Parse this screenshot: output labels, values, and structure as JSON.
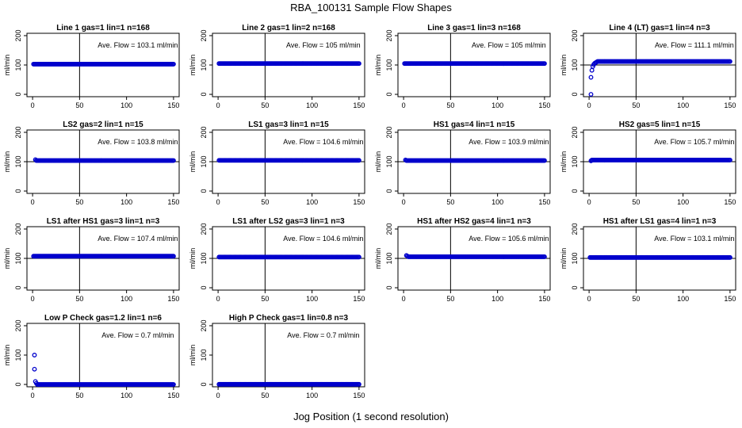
{
  "title": "RBA_100131  Sample Flow Shapes",
  "xlabel": "Jog Position (1 second resolution)",
  "colors": {
    "points": "#0000cc",
    "axes": "#000000",
    "background": "#ffffff"
  },
  "chart_data": [
    {
      "type": "scatter",
      "title": "Line 1 gas=1 lin=1 n=168",
      "ylabel": "ml/min",
      "annotation": "Ave. Flow =  103.1  ml/min",
      "xlim": [
        0,
        150
      ],
      "ylim": [
        0,
        200
      ],
      "xticks": [
        0,
        50,
        100,
        150
      ],
      "yticks": [
        0,
        100,
        200
      ],
      "vline": 50,
      "hline": null,
      "lead": [],
      "flat": {
        "from": 1,
        "to": 150,
        "y": 103
      }
    },
    {
      "type": "scatter",
      "title": "Line 2 gas=1 lin=2 n=168",
      "ylabel": "ml/min",
      "annotation": "Ave. Flow =  105  ml/min",
      "xlim": [
        0,
        150
      ],
      "ylim": [
        0,
        200
      ],
      "xticks": [
        0,
        50,
        100,
        150
      ],
      "yticks": [
        0,
        100,
        200
      ],
      "vline": 50,
      "hline": null,
      "lead": [],
      "flat": {
        "from": 1,
        "to": 150,
        "y": 105
      }
    },
    {
      "type": "scatter",
      "title": "Line 3 gas=1 lin=3 n=168",
      "ylabel": "ml/min",
      "annotation": "Ave. Flow =  105  ml/min",
      "xlim": [
        0,
        150
      ],
      "ylim": [
        0,
        200
      ],
      "xticks": [
        0,
        50,
        100,
        150
      ],
      "yticks": [
        0,
        100,
        200
      ],
      "vline": 50,
      "hline": null,
      "lead": [],
      "flat": {
        "from": 1,
        "to": 150,
        "y": 105
      }
    },
    {
      "type": "scatter",
      "title": "Line 4 (LT) gas=1 lin=4 n=3",
      "ylabel": "ml/min",
      "annotation": "Ave. Flow =  111.1  ml/min",
      "xlim": [
        0,
        150
      ],
      "ylim": [
        0,
        200
      ],
      "xticks": [
        0,
        50,
        100,
        150
      ],
      "yticks": [
        0,
        100,
        200
      ],
      "vline": 50,
      "hline": 100,
      "lead": [
        [
          2,
          0
        ],
        [
          2,
          58
        ],
        [
          3,
          82
        ],
        [
          4,
          95
        ],
        [
          5,
          102
        ],
        [
          6,
          106
        ],
        [
          7,
          108
        ],
        [
          8,
          110
        ]
      ],
      "flat": {
        "from": 9,
        "to": 150,
        "y": 112
      }
    },
    {
      "type": "scatter",
      "title": "LS2 gas=2 lin=1 n=15",
      "ylabel": "ml/min",
      "annotation": "Ave. Flow =  103.8  ml/min",
      "xlim": [
        0,
        150
      ],
      "ylim": [
        0,
        200
      ],
      "xticks": [
        0,
        50,
        100,
        150
      ],
      "yticks": [
        0,
        100,
        200
      ],
      "vline": 50,
      "hline": 100,
      "lead": [
        [
          3,
          107
        ]
      ],
      "flat": {
        "from": 4,
        "to": 150,
        "y": 104
      }
    },
    {
      "type": "scatter",
      "title": "LS1 gas=3 lin=1 n=15",
      "ylabel": "ml/min",
      "annotation": "Ave. Flow =  104.6  ml/min",
      "xlim": [
        0,
        150
      ],
      "ylim": [
        0,
        200
      ],
      "xticks": [
        0,
        50,
        100,
        150
      ],
      "yticks": [
        0,
        100,
        200
      ],
      "vline": 50,
      "hline": 100,
      "lead": [],
      "flat": {
        "from": 1,
        "to": 150,
        "y": 104.6
      }
    },
    {
      "type": "scatter",
      "title": "HS1 gas=4 lin=1 n=15",
      "ylabel": "ml/min",
      "annotation": "Ave. Flow =  103.9  ml/min",
      "xlim": [
        0,
        150
      ],
      "ylim": [
        0,
        200
      ],
      "xticks": [
        0,
        50,
        100,
        150
      ],
      "yticks": [
        0,
        100,
        200
      ],
      "vline": 50,
      "hline": 100,
      "lead": [
        [
          2,
          106
        ]
      ],
      "flat": {
        "from": 3,
        "to": 150,
        "y": 104
      }
    },
    {
      "type": "scatter",
      "title": "HS2 gas=5 lin=1 n=15",
      "ylabel": "ml/min",
      "annotation": "Ave. Flow =  105.7  ml/min",
      "xlim": [
        0,
        150
      ],
      "ylim": [
        0,
        200
      ],
      "xticks": [
        0,
        50,
        100,
        150
      ],
      "yticks": [
        0,
        100,
        200
      ],
      "vline": 50,
      "hline": 100,
      "lead": [
        [
          2,
          103
        ]
      ],
      "flat": {
        "from": 3,
        "to": 150,
        "y": 105.7
      }
    },
    {
      "type": "scatter",
      "title": "LS1 after HS1 gas=3 lin=1 n=3",
      "ylabel": "ml/min",
      "annotation": "Ave. Flow =  107.4  ml/min",
      "xlim": [
        0,
        150
      ],
      "ylim": [
        0,
        200
      ],
      "xticks": [
        0,
        50,
        100,
        150
      ],
      "yticks": [
        0,
        100,
        200
      ],
      "vline": 50,
      "hline": 100,
      "lead": [],
      "flat": {
        "from": 1,
        "to": 150,
        "y": 107.4
      }
    },
    {
      "type": "scatter",
      "title": "LS1 after LS2 gas=3 lin=1 n=3",
      "ylabel": "ml/min",
      "annotation": "Ave. Flow =  104.6  ml/min",
      "xlim": [
        0,
        150
      ],
      "ylim": [
        0,
        200
      ],
      "xticks": [
        0,
        50,
        100,
        150
      ],
      "yticks": [
        0,
        100,
        200
      ],
      "vline": 50,
      "hline": 100,
      "lead": [],
      "flat": {
        "from": 1,
        "to": 150,
        "y": 104.6
      }
    },
    {
      "type": "scatter",
      "title": "HS1 after HS2 gas=4 lin=1 n=3",
      "ylabel": "ml/min",
      "annotation": "Ave. Flow =  105.6  ml/min",
      "xlim": [
        0,
        150
      ],
      "ylim": [
        0,
        200
      ],
      "xticks": [
        0,
        50,
        100,
        150
      ],
      "yticks": [
        0,
        100,
        200
      ],
      "vline": 50,
      "hline": 100,
      "lead": [
        [
          3,
          110
        ],
        [
          4,
          108
        ]
      ],
      "flat": {
        "from": 5,
        "to": 150,
        "y": 105.6
      }
    },
    {
      "type": "scatter",
      "title": "HS1 after LS1 gas=4 lin=1 n=3",
      "ylabel": "ml/min",
      "annotation": "Ave. Flow =  103.1  ml/min",
      "xlim": [
        0,
        150
      ],
      "ylim": [
        0,
        200
      ],
      "xticks": [
        0,
        50,
        100,
        150
      ],
      "yticks": [
        0,
        100,
        200
      ],
      "vline": 50,
      "hline": 100,
      "lead": [],
      "flat": {
        "from": 1,
        "to": 150,
        "y": 103.1
      }
    },
    {
      "type": "scatter",
      "title": "Low P Check gas=1.2 lin=1 n=6",
      "ylabel": "ml/min",
      "annotation": "Ave. Flow =  0.7  ml/min",
      "xlim": [
        0,
        150
      ],
      "ylim": [
        0,
        200
      ],
      "xticks": [
        0,
        50,
        100,
        150
      ],
      "yticks": [
        0,
        100,
        200
      ],
      "vline": 50,
      "hline": null,
      "lead": [
        [
          2,
          100
        ],
        [
          2,
          52
        ],
        [
          3,
          10
        ],
        [
          4,
          4
        ]
      ],
      "flat": {
        "from": 5,
        "to": 150,
        "y": 0
      }
    },
    {
      "type": "scatter",
      "title": "High P Check gas=1 lin=0.8 n=3",
      "ylabel": "ml/min",
      "annotation": "Ave. Flow =  0.7  ml/min",
      "xlim": [
        0,
        150
      ],
      "ylim": [
        0,
        200
      ],
      "xticks": [
        0,
        50,
        100,
        150
      ],
      "yticks": [
        0,
        100,
        200
      ],
      "vline": 50,
      "hline": null,
      "lead": [],
      "flat": {
        "from": 1,
        "to": 150,
        "y": 0.5
      }
    }
  ]
}
